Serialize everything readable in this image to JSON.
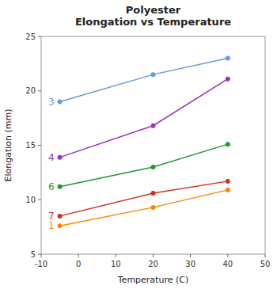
{
  "chart_data": {
    "type": "line",
    "title": "Polyester\nElongation vs Temperature",
    "x_label": "Temperature (C)",
    "y_label": "Elongation (mm)",
    "x": [
      -5,
      20,
      40
    ],
    "series": [
      {
        "name": "3",
        "color": "#6699DD",
        "values": [
          19.0,
          21.5,
          23.0
        ]
      },
      {
        "name": "4",
        "color": "#9933BB",
        "values": [
          13.9,
          16.8,
          21.1
        ]
      },
      {
        "name": "6",
        "color": "#229933",
        "values": [
          11.2,
          13.0,
          15.1
        ]
      },
      {
        "name": "7",
        "color": "#CC3322",
        "values": [
          8.5,
          10.6,
          11.7
        ]
      },
      {
        "name": "1",
        "color": "#FF8800",
        "values": [
          7.6,
          9.3,
          10.9
        ]
      }
    ],
    "xlim": [
      -10,
      50
    ],
    "ylim": [
      5,
      25
    ],
    "xticks": [
      -10,
      0,
      10,
      20,
      30,
      40,
      50
    ],
    "yticks": [
      5,
      10,
      15,
      20,
      25
    ],
    "grid": false,
    "marker": "circle"
  }
}
